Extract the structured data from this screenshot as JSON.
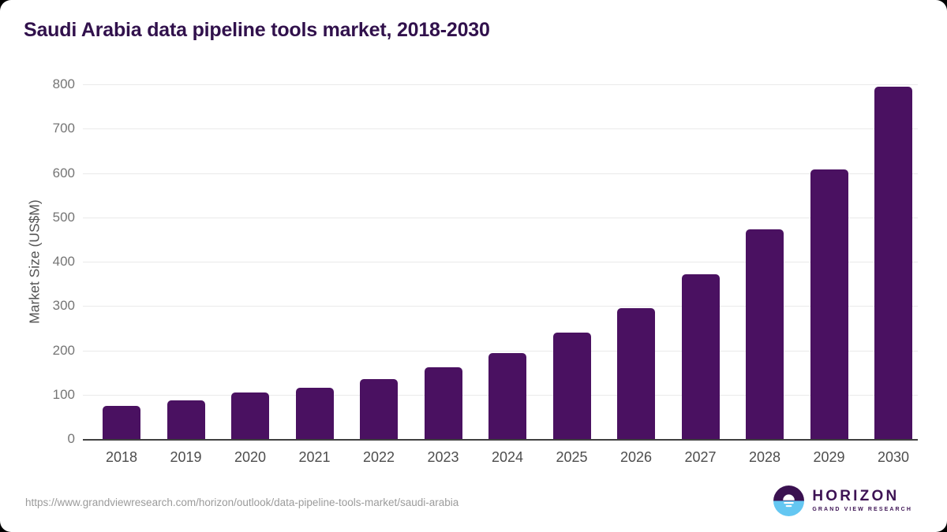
{
  "page": {
    "title": "Saudi Arabia data pipeline tools market, 2018-2030",
    "source_url": "https://www.grandviewresearch.com/horizon/outlook/data-pipeline-tools-market/saudi-arabia"
  },
  "logo": {
    "name": "HORIZON",
    "subtitle": "GRAND VIEW RESEARCH"
  },
  "colors": {
    "bar": "#4a1161",
    "title_text": "#31114c",
    "gridline": "#eaeaea",
    "axis_line": "#404040",
    "ytick_text": "#757575",
    "xlabel_text": "#4d4d4d",
    "url_text": "#9b9b9b",
    "logo_purple": "#3d1354",
    "logo_blue": "#64c7f2"
  },
  "chart_data": {
    "type": "bar",
    "title": "Saudi Arabia data pipeline tools market, 2018-2030",
    "categories": [
      "2018",
      "2019",
      "2020",
      "2021",
      "2022",
      "2023",
      "2024",
      "2025",
      "2026",
      "2027",
      "2028",
      "2029",
      "2030"
    ],
    "values": [
      75,
      88,
      105,
      115,
      135,
      161,
      194,
      240,
      296,
      372,
      473,
      608,
      794
    ],
    "xlabel": "",
    "ylabel": "Market Size (US$M)",
    "ylim": [
      0,
      800
    ],
    "yticks": [
      0,
      100,
      200,
      300,
      400,
      500,
      600,
      700,
      800
    ],
    "grid": true,
    "legend": false,
    "bar_color": "#4a1161"
  }
}
